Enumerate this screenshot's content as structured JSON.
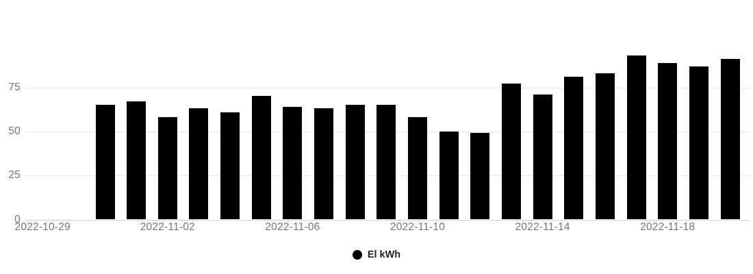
{
  "colors": {
    "bar": "#000000",
    "grid_line": "#e7e7e7",
    "axis_zero_line": "#c9d2ea",
    "tick_text": "#757575",
    "legend_text": "#222222"
  },
  "legend": {
    "series_label": "El kWh"
  },
  "chart_data": {
    "type": "bar",
    "title": "",
    "xlabel": "",
    "ylabel": "",
    "series_name": "El kWh",
    "x": [
      "2022-10-31",
      "2022-11-01",
      "2022-11-02",
      "2022-11-03",
      "2022-11-04",
      "2022-11-05",
      "2022-11-06",
      "2022-11-07",
      "2022-11-08",
      "2022-11-09",
      "2022-11-10",
      "2022-11-11",
      "2022-11-12",
      "2022-11-13",
      "2022-11-14",
      "2022-11-15",
      "2022-11-16",
      "2022-11-17",
      "2022-11-18",
      "2022-11-19",
      "2022-11-20"
    ],
    "values": [
      65,
      67,
      58,
      63,
      61,
      70,
      64,
      63,
      65,
      65,
      58,
      50,
      49,
      77,
      71,
      81,
      83,
      93,
      89,
      87,
      91
    ],
    "ylim": [
      0,
      100
    ],
    "yticks": [
      0,
      25,
      50,
      75
    ],
    "xticks": [
      {
        "label": "2022-10-29",
        "day_offset": -2
      },
      {
        "label": "2022-11-02",
        "day_offset": 2
      },
      {
        "label": "2022-11-06",
        "day_offset": 6
      },
      {
        "label": "2022-11-10",
        "day_offset": 10
      },
      {
        "label": "2022-11-14",
        "day_offset": 14
      },
      {
        "label": "2022-11-18",
        "day_offset": 18
      }
    ],
    "grid": true,
    "legend_position": "bottom"
  }
}
